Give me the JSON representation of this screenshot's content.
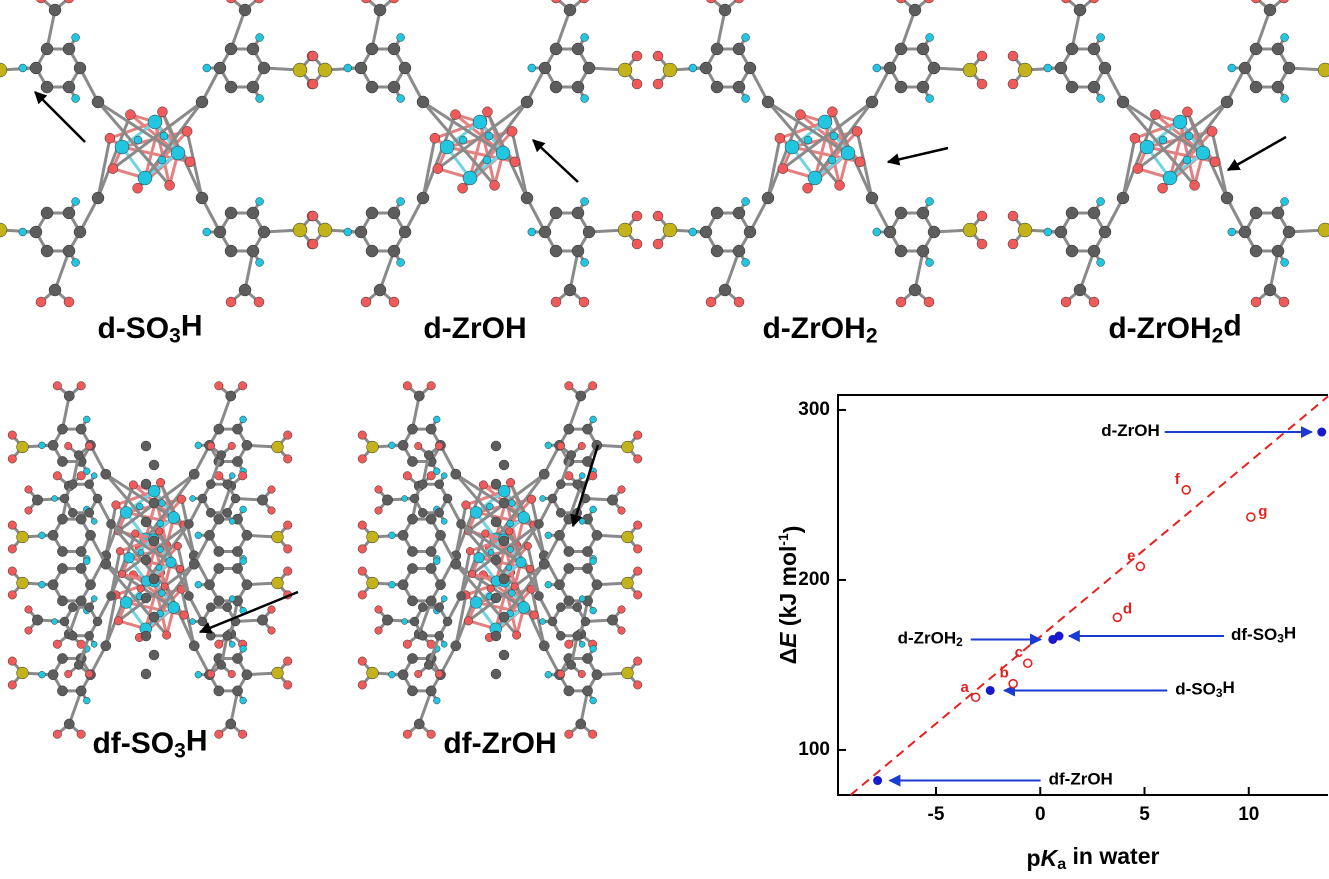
{
  "panels": [
    {
      "label": "d-SO3H"
    },
    {
      "label": "d-ZrOH"
    },
    {
      "label": "d-ZrOH2"
    },
    {
      "label": "d-ZrOH2d"
    },
    {
      "label": "df-SO3H"
    },
    {
      "label": "df-ZrOH"
    }
  ],
  "chart_data": {
    "type": "scatter",
    "xlabel": "pKa in water",
    "ylabel": "ΔE (kJ mol-1)",
    "xlim": [
      -9.7,
      13.8
    ],
    "ylim": [
      73.5,
      308.8
    ],
    "xticks": [
      -5,
      0,
      5,
      10
    ],
    "yticks": [
      100,
      200,
      300
    ],
    "fit": {
      "x": [
        -9.1,
        13.8
      ],
      "y": [
        73.5,
        308
      ],
      "color": "#e8201e"
    },
    "series": [
      {
        "color": "#1a1acc",
        "marker": "filled",
        "x": [
          13.5,
          0.6,
          0.9,
          -2.4,
          -7.8
        ],
        "values": [
          287,
          165,
          167,
          135,
          82
        ],
        "labels": [
          "d-ZrOH",
          "d-ZrOH2",
          "df-SO3H",
          "d-SO3H",
          "df-ZrOH"
        ]
      },
      {
        "color": "#e8201e",
        "marker": "open",
        "x": [
          -3.1,
          -1.3,
          -0.6,
          3.7,
          4.8,
          7.0,
          10.1
        ],
        "values": [
          131,
          139,
          151,
          178,
          208,
          253,
          237
        ],
        "labels": [
          "a",
          "b",
          "c",
          "d",
          "e",
          "f",
          "g"
        ]
      }
    ]
  }
}
